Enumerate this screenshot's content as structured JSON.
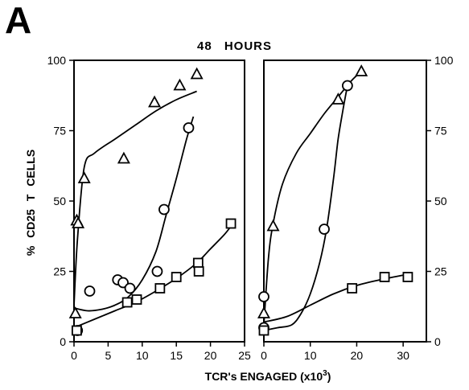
{
  "figure": {
    "panel_letter": "A",
    "title": "48   HOURS"
  },
  "chart_data": {
    "type": "scatter",
    "title": "48   HOURS",
    "xlabel": "TCR's ENGAGED (x10",
    "xlabel_sup": "3",
    "xlabel_close": ")",
    "ylabel": "%  CD25   T   CELLS",
    "panels": [
      {
        "name": "left",
        "xlim": [
          0,
          25
        ],
        "ylim": [
          0,
          100
        ],
        "xticks": [
          0,
          5,
          10,
          15,
          20,
          25
        ],
        "yticks": [
          0,
          25,
          50,
          75,
          100
        ],
        "ytick_side": "left",
        "series": [
          {
            "marker": "triangle",
            "points": [
              [
                0.2,
                10
              ],
              [
                0.4,
                43
              ],
              [
                0.6,
                42
              ],
              [
                1.5,
                58
              ],
              [
                7.3,
                65
              ],
              [
                11.8,
                85
              ],
              [
                15.5,
                91
              ],
              [
                18,
                95
              ]
            ],
            "curve": [
              [
                0,
                13
              ],
              [
                0.5,
                36
              ],
              [
                1.5,
                62
              ],
              [
                3,
                67
              ],
              [
                6,
                72
              ],
              [
                9,
                77
              ],
              [
                12,
                82
              ],
              [
                15,
                86
              ],
              [
                18,
                89
              ]
            ]
          },
          {
            "marker": "circle",
            "points": [
              [
                0.5,
                4
              ],
              [
                2.3,
                18
              ],
              [
                6.4,
                22
              ],
              [
                7.2,
                21
              ],
              [
                8.2,
                19
              ],
              [
                12.2,
                25
              ],
              [
                13.2,
                47
              ],
              [
                16.8,
                76
              ]
            ],
            "curve": [
              [
                0,
                12
              ],
              [
                2,
                11
              ],
              [
                4,
                11.5
              ],
              [
                6,
                13
              ],
              [
                8,
                16
              ],
              [
                10,
                22
              ],
              [
                12,
                32
              ],
              [
                13.5,
                45
              ],
              [
                15,
                58
              ],
              [
                16.5,
                72
              ],
              [
                17.5,
                80
              ]
            ]
          },
          {
            "marker": "square",
            "points": [
              [
                0.4,
                4
              ],
              [
                7.8,
                14
              ],
              [
                9.2,
                15
              ],
              [
                12.6,
                19
              ],
              [
                15,
                23
              ],
              [
                18.2,
                28
              ],
              [
                18.3,
                25
              ],
              [
                23,
                42
              ]
            ],
            "curve": [
              [
                0,
                5
              ],
              [
                3,
                8
              ],
              [
                6,
                11
              ],
              [
                9,
                14
              ],
              [
                12,
                18
              ],
              [
                15,
                22.5
              ],
              [
                18,
                28
              ],
              [
                20,
                33
              ],
              [
                22,
                38
              ],
              [
                23,
                41
              ]
            ]
          }
        ]
      },
      {
        "name": "right",
        "xlim": [
          0,
          35
        ],
        "ylim": [
          0,
          100
        ],
        "xticks": [
          0,
          10,
          20,
          30
        ],
        "yticks": [
          0,
          25,
          50,
          75,
          100
        ],
        "ytick_side": "right",
        "series": [
          {
            "marker": "triangle",
            "points": [
              [
                0,
                10
              ],
              [
                2,
                41
              ],
              [
                16,
                86
              ],
              [
                21,
                96
              ]
            ],
            "curve": [
              [
                0,
                6
              ],
              [
                1,
                30
              ],
              [
                2,
                42
              ],
              [
                4,
                56
              ],
              [
                7,
                67
              ],
              [
                10,
                74
              ],
              [
                13,
                81
              ],
              [
                16,
                87
              ],
              [
                19,
                93
              ],
              [
                21,
                96
              ]
            ]
          },
          {
            "marker": "circle",
            "points": [
              [
                0,
                16
              ],
              [
                0,
                5
              ],
              [
                13,
                40
              ],
              [
                18,
                91
              ]
            ],
            "curve": [
              [
                0,
                4
              ],
              [
                3,
                5
              ],
              [
                6,
                6
              ],
              [
                8,
                10
              ],
              [
                10,
                17
              ],
              [
                12,
                28
              ],
              [
                13.5,
                40
              ],
              [
                15,
                58
              ],
              [
                16,
                72
              ],
              [
                17,
                82
              ],
              [
                18,
                91
              ]
            ]
          },
          {
            "marker": "square",
            "points": [
              [
                0,
                4
              ],
              [
                19,
                19
              ],
              [
                26,
                23
              ],
              [
                31,
                23
              ]
            ],
            "curve": [
              [
                0,
                7
              ],
              [
                5,
                9
              ],
              [
                10,
                13
              ],
              [
                15,
                17
              ],
              [
                20,
                20
              ],
              [
                25,
                22
              ],
              [
                31,
                24
              ]
            ]
          }
        ]
      }
    ]
  }
}
